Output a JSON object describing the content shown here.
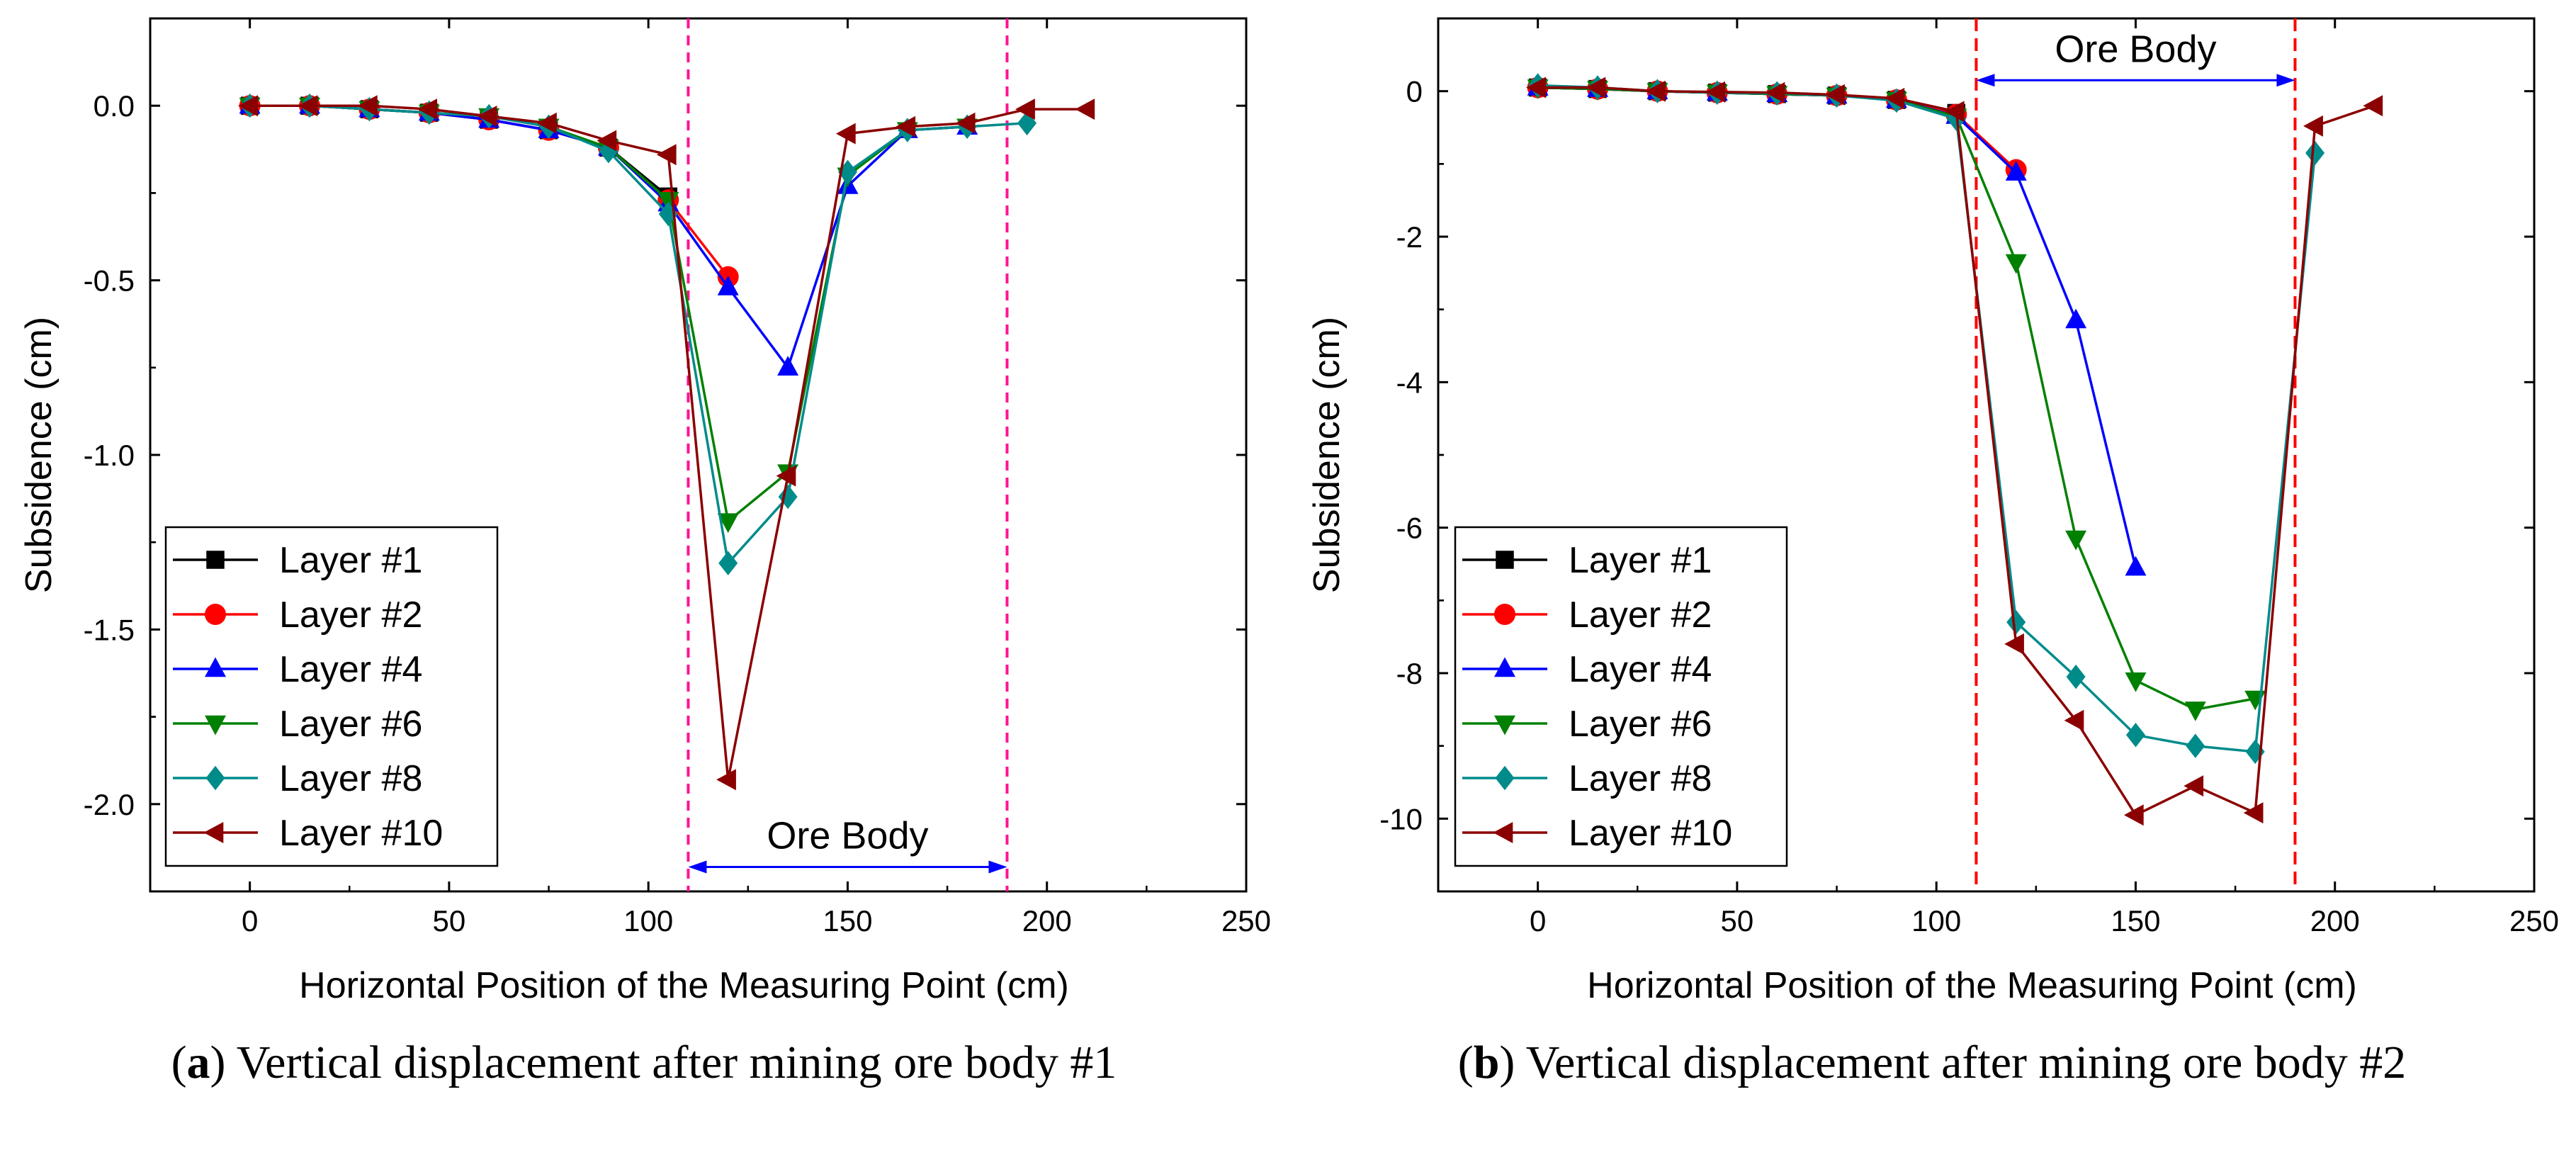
{
  "colors": {
    "Layer #1": "#000000",
    "Layer #2": "#ff0000",
    "Layer #4": "#0000ff",
    "Layer #6": "#008000",
    "Layer #8": "#008b8b",
    "Layer #10": "#8b0000",
    "boundary_a": "#ff1493",
    "boundary_b": "#ff0000",
    "arrow": "#0000ff"
  },
  "captions": [
    {
      "open": "(",
      "letter": "a",
      "text": ") Vertical displacement after mining ore body #1"
    },
    {
      "open": "(",
      "letter": "b",
      "text": ") Vertical displacement after mining ore body #2"
    }
  ],
  "chart_data": [
    {
      "type": "line",
      "xlabel": "Horizontal  Position  of  the Measuring  Point (cm)",
      "ylabel": "Subsidence (cm)",
      "xlim": [
        -25,
        250
      ],
      "ylim": [
        -2.25,
        0.25
      ],
      "xticks": [
        0,
        50,
        100,
        150,
        200,
        250
      ],
      "yticks": [
        0.0,
        -0.5,
        -1.0,
        -1.5,
        -2.0
      ],
      "ytick_labels": [
        "0.0",
        "-0.5",
        "-1.0",
        "-1.5",
        "-2.0"
      ],
      "legend_position": "bottom-left",
      "annotation": {
        "text": "Ore Body",
        "x_start": 110,
        "x_end": 190,
        "y": -2.18,
        "text_position": "above-arrow"
      },
      "boundaries": [
        110,
        190
      ],
      "series": [
        {
          "name": "Layer #1",
          "marker": "square",
          "x": [
            0,
            15,
            30,
            45,
            60,
            75,
            90,
            105
          ],
          "y": [
            0,
            0,
            -0.01,
            -0.02,
            -0.04,
            -0.07,
            -0.12,
            -0.26
          ]
        },
        {
          "name": "Layer #2",
          "marker": "circle",
          "x": [
            0,
            15,
            30,
            45,
            60,
            75,
            90,
            105,
            120
          ],
          "y": [
            0,
            0,
            -0.01,
            -0.02,
            -0.04,
            -0.07,
            -0.12,
            -0.27,
            -0.49
          ]
        },
        {
          "name": "Layer #4",
          "marker": "triangle-up",
          "x": [
            0,
            15,
            30,
            45,
            60,
            75,
            90,
            105,
            120,
            135,
            150,
            165,
            180
          ],
          "y": [
            0,
            0,
            -0.01,
            -0.02,
            -0.04,
            -0.07,
            -0.12,
            -0.28,
            -0.52,
            -0.75,
            -0.23,
            -0.07,
            -0.06
          ]
        },
        {
          "name": "Layer #6",
          "marker": "triangle-down",
          "x": [
            0,
            15,
            30,
            45,
            60,
            75,
            90,
            105,
            120,
            135,
            150,
            165,
            180
          ],
          "y": [
            0,
            0,
            -0.01,
            -0.02,
            -0.03,
            -0.06,
            -0.12,
            -0.27,
            -1.19,
            -1.05,
            -0.2,
            -0.07,
            -0.06
          ]
        },
        {
          "name": "Layer #8",
          "marker": "diamond",
          "x": [
            0,
            15,
            30,
            45,
            60,
            75,
            90,
            105,
            120,
            135,
            150,
            165,
            180,
            195
          ],
          "y": [
            0,
            0,
            -0.01,
            -0.02,
            -0.03,
            -0.06,
            -0.13,
            -0.31,
            -1.31,
            -1.12,
            -0.19,
            -0.07,
            -0.06,
            -0.05
          ]
        },
        {
          "name": "Layer #10",
          "marker": "triangle-left",
          "x": [
            0,
            15,
            30,
            45,
            60,
            75,
            90,
            105,
            120,
            135,
            150,
            165,
            180,
            195,
            210
          ],
          "y": [
            0,
            0,
            0,
            -0.01,
            -0.03,
            -0.05,
            -0.1,
            -0.14,
            -1.93,
            -1.06,
            -0.08,
            -0.06,
            -0.05,
            -0.01,
            -0.01
          ]
        }
      ]
    },
    {
      "type": "line",
      "xlabel": "Horizontal  Position  of  the Measuring  Point (cm)",
      "ylabel": "Subsidence (cm)",
      "xlim": [
        -25,
        250
      ],
      "ylim": [
        -11,
        1
      ],
      "xticks": [
        0,
        50,
        100,
        150,
        200,
        250
      ],
      "yticks": [
        0,
        -2,
        -4,
        -6,
        -8,
        -10
      ],
      "ytick_labels": [
        "0",
        "-2",
        "-4",
        "-6",
        "-8",
        "-10"
      ],
      "legend_position": "bottom-left",
      "annotation": {
        "text": "Ore Body",
        "x_start": 110,
        "x_end": 190,
        "y": 0.15,
        "text_position": "above-arrow"
      },
      "boundaries": [
        110,
        190
      ],
      "series": [
        {
          "name": "Layer #1",
          "marker": "square",
          "x": [
            0,
            15,
            30,
            45,
            60,
            75,
            90,
            105
          ],
          "y": [
            0.05,
            0.03,
            0,
            -0.02,
            -0.04,
            -0.06,
            -0.12,
            -0.3
          ]
        },
        {
          "name": "Layer #2",
          "marker": "circle",
          "x": [
            0,
            15,
            30,
            45,
            60,
            75,
            90,
            105,
            120
          ],
          "y": [
            0.05,
            0.03,
            0,
            -0.02,
            -0.04,
            -0.06,
            -0.12,
            -0.32,
            -1.08
          ]
        },
        {
          "name": "Layer #4",
          "marker": "triangle-up",
          "x": [
            0,
            15,
            30,
            45,
            60,
            75,
            90,
            105,
            120,
            135,
            150
          ],
          "y": [
            0.05,
            0.03,
            0,
            -0.02,
            -0.04,
            -0.06,
            -0.12,
            -0.34,
            -1.12,
            -3.15,
            -6.55
          ]
        },
        {
          "name": "Layer #6",
          "marker": "triangle-down",
          "x": [
            0,
            15,
            30,
            45,
            60,
            75,
            90,
            105,
            120,
            135,
            150,
            165,
            180
          ],
          "y": [
            0.05,
            0.03,
            0,
            -0.02,
            -0.04,
            -0.06,
            -0.12,
            -0.35,
            -2.35,
            -6.15,
            -8.1,
            -8.5,
            -8.35
          ]
        },
        {
          "name": "Layer #8",
          "marker": "diamond",
          "x": [
            0,
            15,
            30,
            45,
            60,
            75,
            90,
            105,
            120,
            135,
            150,
            165,
            180,
            195
          ],
          "y": [
            0.08,
            0.05,
            0,
            -0.02,
            -0.03,
            -0.06,
            -0.13,
            -0.38,
            -7.3,
            -8.05,
            -8.85,
            -9.0,
            -9.08,
            -0.85
          ]
        },
        {
          "name": "Layer #10",
          "marker": "triangle-left",
          "x": [
            0,
            15,
            30,
            45,
            60,
            75,
            90,
            105,
            120,
            135,
            150,
            165,
            180,
            195,
            210
          ],
          "y": [
            0.05,
            0.05,
            0,
            -0.01,
            -0.02,
            -0.05,
            -0.1,
            -0.28,
            -7.6,
            -8.65,
            -9.95,
            -9.55,
            -9.92,
            -0.48,
            -0.2
          ]
        }
      ]
    }
  ]
}
